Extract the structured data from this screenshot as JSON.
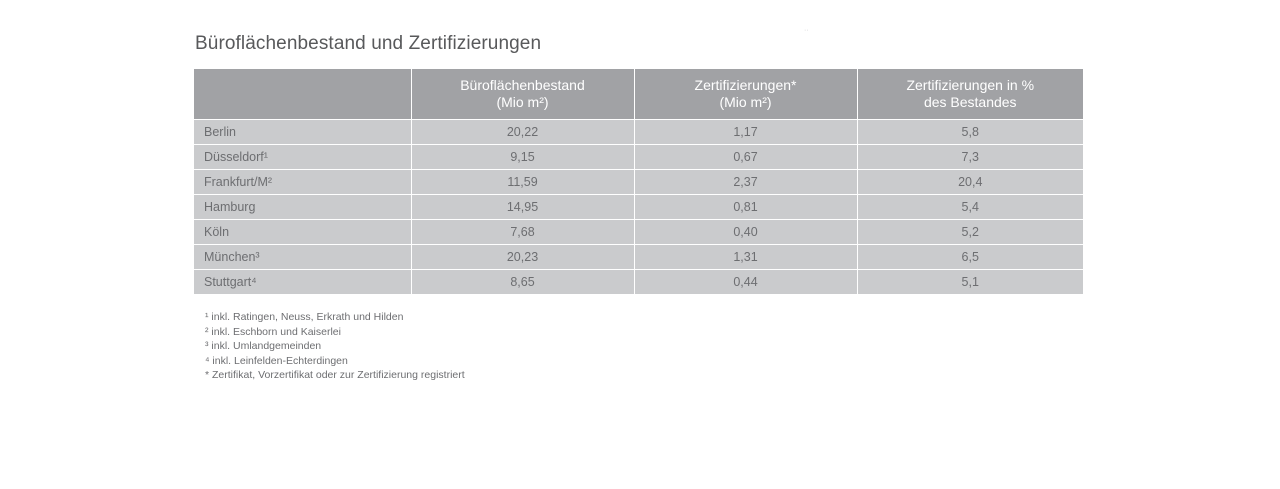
{
  "title": "Büroflächenbestand und Zertifizierungen",
  "table": {
    "headers": [
      {
        "line1": "",
        "line2": ""
      },
      {
        "line1": "Büroflächenbestand",
        "line2": "(Mio m²)"
      },
      {
        "line1": "Zertifizierungen*",
        "line2": "(Mio m²)"
      },
      {
        "line1": "Zertifizierungen in %",
        "line2": "des Bestandes"
      }
    ],
    "rows": [
      {
        "city": "Berlin",
        "stock": "20,22",
        "cert": "1,17",
        "pct": "5,8"
      },
      {
        "city": "Düsseldorf¹",
        "stock": "9,15",
        "cert": "0,67",
        "pct": "7,3"
      },
      {
        "city": "Frankfurt/M²",
        "stock": "11,59",
        "cert": "2,37",
        "pct": "20,4"
      },
      {
        "city": "Hamburg",
        "stock": "14,95",
        "cert": "0,81",
        "pct": "5,4"
      },
      {
        "city": "Köln",
        "stock": "7,68",
        "cert": "0,40",
        "pct": "5,2"
      },
      {
        "city": "München³",
        "stock": "20,23",
        "cert": "1,31",
        "pct": "6,5"
      },
      {
        "city": "Stuttgart⁴",
        "stock": "8,65",
        "cert": "0,44",
        "pct": "5,1"
      }
    ]
  },
  "footnotes": [
    "¹ inkl. Ratingen, Neuss, Erkrath und Hilden",
    "² inkl. Eschborn und Kaiserlei",
    "³ inkl. Umlandgemeinden",
    "⁴ inkl. Leinfelden-Echterdingen",
    "* Zertifikat, Vorzertifikat oder zur Zertifizierung registriert"
  ],
  "colors": {
    "header_bg": "#a1a2a5",
    "row_bg": "#cacbcd",
    "text": "#6d6e71"
  }
}
